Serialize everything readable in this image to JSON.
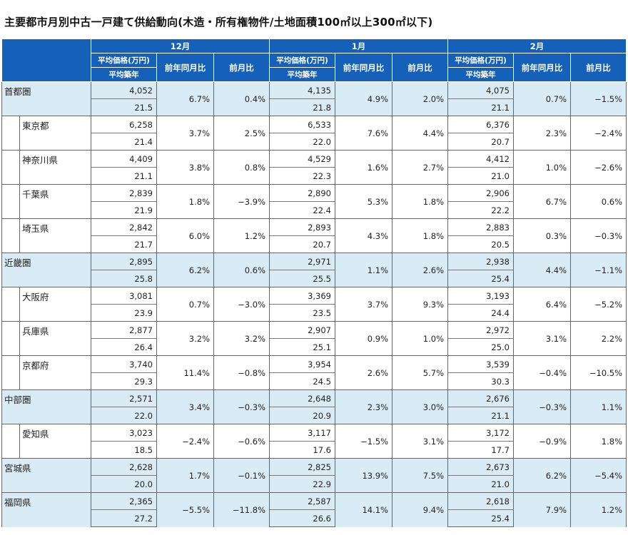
{
  "title": "主要都市月別中古一戸建て供給動向(木造・所有権物件/土地面積100㎡以上300㎡以下)",
  "headers": {
    "months": [
      "12月",
      "1月",
      "2月"
    ],
    "price_label": "平均価格(万円)",
    "age_label": "平均築年",
    "yoy_label": "前年同月比",
    "mom_label": "前月比"
  },
  "rows": [
    {
      "name": "首都圏",
      "level": 0,
      "band": true,
      "m": [
        {
          "price": "4,052",
          "age": "21.5",
          "yoy": "6.7%",
          "mom": "0.4%"
        },
        {
          "price": "4,135",
          "age": "21.8",
          "yoy": "4.9%",
          "mom": "2.0%"
        },
        {
          "price": "4,075",
          "age": "21.1",
          "yoy": "0.7%",
          "mom": "−1.5%"
        }
      ]
    },
    {
      "name": "東京都",
      "level": 1,
      "band": false,
      "m": [
        {
          "price": "6,258",
          "age": "21.4",
          "yoy": "3.7%",
          "mom": "2.5%"
        },
        {
          "price": "6,533",
          "age": "22.0",
          "yoy": "7.6%",
          "mom": "4.4%"
        },
        {
          "price": "6,376",
          "age": "20.7",
          "yoy": "2.3%",
          "mom": "−2.4%"
        }
      ]
    },
    {
      "name": "神奈川県",
      "level": 1,
      "band": false,
      "m": [
        {
          "price": "4,409",
          "age": "21.1",
          "yoy": "3.8%",
          "mom": "0.8%"
        },
        {
          "price": "4,529",
          "age": "22.3",
          "yoy": "1.6%",
          "mom": "2.7%"
        },
        {
          "price": "4,412",
          "age": "21.0",
          "yoy": "1.0%",
          "mom": "−2.6%"
        }
      ]
    },
    {
      "name": "千葉県",
      "level": 1,
      "band": false,
      "m": [
        {
          "price": "2,839",
          "age": "21.9",
          "yoy": "1.8%",
          "mom": "−3.9%"
        },
        {
          "price": "2,890",
          "age": "22.4",
          "yoy": "5.3%",
          "mom": "1.8%"
        },
        {
          "price": "2,906",
          "age": "22.2",
          "yoy": "6.7%",
          "mom": "0.6%"
        }
      ]
    },
    {
      "name": "埼玉県",
      "level": 1,
      "band": false,
      "m": [
        {
          "price": "2,842",
          "age": "21.7",
          "yoy": "6.0%",
          "mom": "1.2%"
        },
        {
          "price": "2,893",
          "age": "20.7",
          "yoy": "4.3%",
          "mom": "1.8%"
        },
        {
          "price": "2,883",
          "age": "20.5",
          "yoy": "0.3%",
          "mom": "−0.3%"
        }
      ]
    },
    {
      "name": "近畿圏",
      "level": 0,
      "band": true,
      "m": [
        {
          "price": "2,895",
          "age": "25.8",
          "yoy": "6.2%",
          "mom": "0.6%"
        },
        {
          "price": "2,971",
          "age": "25.5",
          "yoy": "1.1%",
          "mom": "2.6%"
        },
        {
          "price": "2,938",
          "age": "25.4",
          "yoy": "4.4%",
          "mom": "−1.1%"
        }
      ]
    },
    {
      "name": "大阪府",
      "level": 1,
      "band": false,
      "m": [
        {
          "price": "3,081",
          "age": "23.9",
          "yoy": "0.7%",
          "mom": "−3.0%"
        },
        {
          "price": "3,369",
          "age": "23.5",
          "yoy": "3.7%",
          "mom": "9.3%"
        },
        {
          "price": "3,193",
          "age": "24.4",
          "yoy": "6.4%",
          "mom": "−5.2%"
        }
      ]
    },
    {
      "name": "兵庫県",
      "level": 1,
      "band": false,
      "m": [
        {
          "price": "2,877",
          "age": "26.4",
          "yoy": "3.2%",
          "mom": "3.2%"
        },
        {
          "price": "2,907",
          "age": "25.1",
          "yoy": "0.9%",
          "mom": "1.0%"
        },
        {
          "price": "2,972",
          "age": "25.0",
          "yoy": "3.1%",
          "mom": "2.2%"
        }
      ]
    },
    {
      "name": "京都府",
      "level": 1,
      "band": false,
      "m": [
        {
          "price": "3,740",
          "age": "29.3",
          "yoy": "11.4%",
          "mom": "−0.8%"
        },
        {
          "price": "3,954",
          "age": "24.5",
          "yoy": "2.6%",
          "mom": "5.7%"
        },
        {
          "price": "3,539",
          "age": "30.3",
          "yoy": "−0.4%",
          "mom": "−10.5%"
        }
      ]
    },
    {
      "name": "中部圏",
      "level": 0,
      "band": true,
      "m": [
        {
          "price": "2,571",
          "age": "22.0",
          "yoy": "3.4%",
          "mom": "−0.3%"
        },
        {
          "price": "2,648",
          "age": "20.9",
          "yoy": "2.3%",
          "mom": "3.0%"
        },
        {
          "price": "2,676",
          "age": "21.1",
          "yoy": "−0.3%",
          "mom": "1.1%"
        }
      ]
    },
    {
      "name": "愛知県",
      "level": 1,
      "band": false,
      "m": [
        {
          "price": "3,023",
          "age": "18.5",
          "yoy": "−2.4%",
          "mom": "−0.6%"
        },
        {
          "price": "3,117",
          "age": "17.6",
          "yoy": "−1.5%",
          "mom": "3.1%"
        },
        {
          "price": "3,172",
          "age": "17.7",
          "yoy": "−0.9%",
          "mom": "1.8%"
        }
      ]
    },
    {
      "name": "宮城県",
      "level": 0,
      "band": true,
      "m": [
        {
          "price": "2,628",
          "age": "20.0",
          "yoy": "1.7%",
          "mom": "−0.1%"
        },
        {
          "price": "2,825",
          "age": "22.9",
          "yoy": "13.9%",
          "mom": "7.5%"
        },
        {
          "price": "2,673",
          "age": "21.0",
          "yoy": "6.2%",
          "mom": "−5.4%"
        }
      ]
    },
    {
      "name": "福岡県",
      "level": 0,
      "band": true,
      "m": [
        {
          "price": "2,365",
          "age": "27.2",
          "yoy": "−5.5%",
          "mom": "−11.8%"
        },
        {
          "price": "2,587",
          "age": "26.6",
          "yoy": "14.1%",
          "mom": "9.4%"
        },
        {
          "price": "2,618",
          "age": "25.4",
          "yoy": "7.9%",
          "mom": "1.2%"
        }
      ]
    }
  ]
}
